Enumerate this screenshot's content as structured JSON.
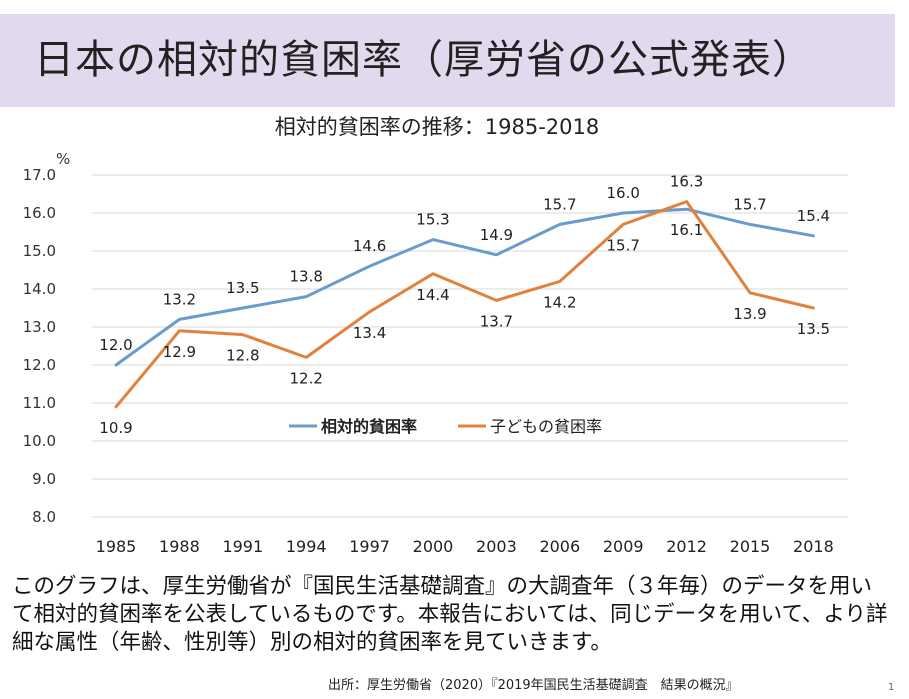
{
  "slide": {
    "title": "日本の相対的貧困率（厚労省の公式発表）",
    "description": "このグラフは、厚生労働省が『国民生活基礎調査』の大調査年（３年毎）のデータを用いて相対的貧困率を公表しているものです。本報告においては、同じデータを用いて、より詳細な属性（年齢、性別等）別の相対的貧困率を見ていきます。",
    "source": "出所：厚生労働省（2020）『2019年国民生活基礎調査　結果の概況』",
    "page_number": "1"
  },
  "chart_data": {
    "type": "line",
    "title": "相対的貧困率の推移：1985-2018",
    "ylabel": "%",
    "ylim": [
      8.0,
      17.0
    ],
    "yticks": [
      "8.0",
      "9.0",
      "10.0",
      "11.0",
      "12.0",
      "13.0",
      "14.0",
      "15.0",
      "16.0",
      "17.0"
    ],
    "grid": true,
    "legend_position": "center",
    "categories": [
      "1985",
      "1988",
      "1991",
      "1994",
      "1997",
      "2000",
      "2003",
      "2006",
      "2009",
      "2012",
      "2015",
      "2018"
    ],
    "series": [
      {
        "name": "相対的貧困率",
        "color": "#6b9bcc",
        "values": [
          12.0,
          13.2,
          13.5,
          13.8,
          14.6,
          15.3,
          14.9,
          15.7,
          16.0,
          16.1,
          15.7,
          15.4
        ],
        "labels": [
          "12.0",
          "13.2",
          "13.5",
          "13.8",
          "14.6",
          "15.3",
          "14.9",
          "15.7",
          "16.0",
          "16.1",
          "15.7",
          "15.4"
        ]
      },
      {
        "name": "子どもの貧困率",
        "color": "#e0813d",
        "values": [
          10.9,
          12.9,
          12.8,
          12.2,
          13.4,
          14.4,
          13.7,
          14.2,
          15.7,
          16.3,
          13.9,
          13.5
        ],
        "labels": [
          "10.9",
          "12.9",
          "12.8",
          "12.2",
          "13.4",
          "14.4",
          "13.7",
          "14.2",
          "15.7",
          "16.3",
          "13.9",
          "13.5"
        ]
      }
    ]
  }
}
